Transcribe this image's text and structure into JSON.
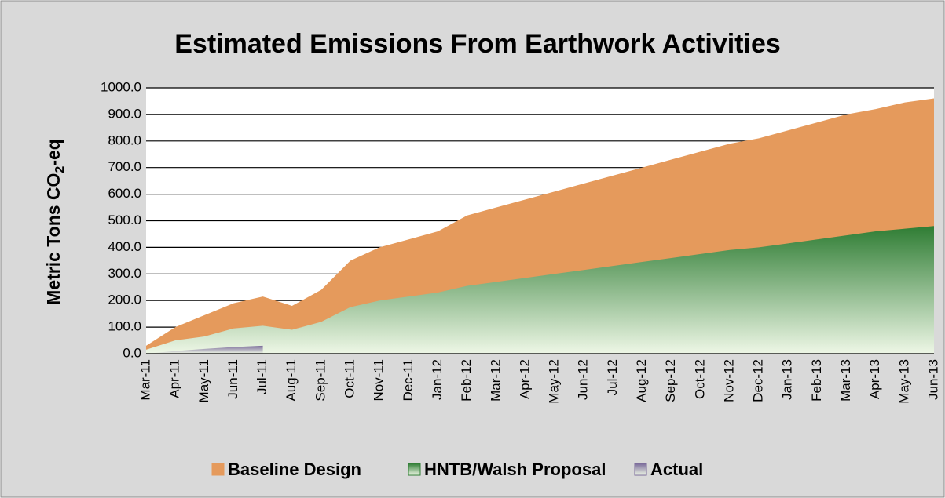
{
  "chart_data": {
    "type": "area",
    "title": "Estimated Emissions From Earthwork Activities",
    "y_label": [
      "Metric Tons CO",
      "2",
      "-eq"
    ],
    "categories": [
      "Mar-11",
      "Apr-11",
      "May-11",
      "Jun-11",
      "Jul-11",
      "Aug-11",
      "Sep-11",
      "Oct-11",
      "Nov-11",
      "Dec-11",
      "Jan-12",
      "Feb-12",
      "Mar-12",
      "Apr-12",
      "May-12",
      "Jun-12",
      "Jul-12",
      "Aug-12",
      "Sep-12",
      "Oct-12",
      "Nov-12",
      "Dec-12",
      "Jan-13",
      "Feb-13",
      "Mar-13",
      "Apr-13",
      "May-13",
      "Jun-13"
    ],
    "series": [
      {
        "name": "Baseline Design",
        "color": "#e59a5c",
        "values": [
          30,
          100,
          145,
          190,
          215,
          180,
          240,
          350,
          400,
          430,
          460,
          520,
          550,
          580,
          610,
          640,
          670,
          700,
          730,
          760,
          790,
          810,
          840,
          870,
          900,
          920,
          945,
          960
        ]
      },
      {
        "name": "HNTB/Walsh Proposal",
        "color": "#2f7d34",
        "values": [
          15,
          50,
          65,
          95,
          105,
          90,
          120,
          175,
          200,
          215,
          230,
          255,
          270,
          285,
          300,
          315,
          330,
          345,
          360,
          375,
          390,
          400,
          415,
          430,
          445,
          460,
          470,
          480
        ]
      },
      {
        "name": "Actual",
        "color": "#7a6a9a",
        "values": [
          0,
          10,
          18,
          25,
          30,
          null,
          null,
          null,
          null,
          null,
          null,
          null,
          null,
          null,
          null,
          null,
          null,
          null,
          null,
          null,
          null,
          null,
          null,
          null,
          null,
          null,
          null,
          null
        ]
      }
    ],
    "ylim": [
      0,
      1000
    ],
    "yticks": [
      {
        "value": 0,
        "label": "0.0"
      },
      {
        "value": 100,
        "label": "100.0"
      },
      {
        "value": 200,
        "label": "200.0"
      },
      {
        "value": 300,
        "label": "300.0"
      },
      {
        "value": 400,
        "label": "400.0"
      },
      {
        "value": 500,
        "label": "500.0"
      },
      {
        "value": 600,
        "label": "600.0"
      },
      {
        "value": 700,
        "label": "700.0"
      },
      {
        "value": 800,
        "label": "800.0"
      },
      {
        "value": 900,
        "label": "900.0"
      },
      {
        "value": 1000,
        "label": "1000.0"
      }
    ],
    "grid": true,
    "legend": "bottom"
  }
}
